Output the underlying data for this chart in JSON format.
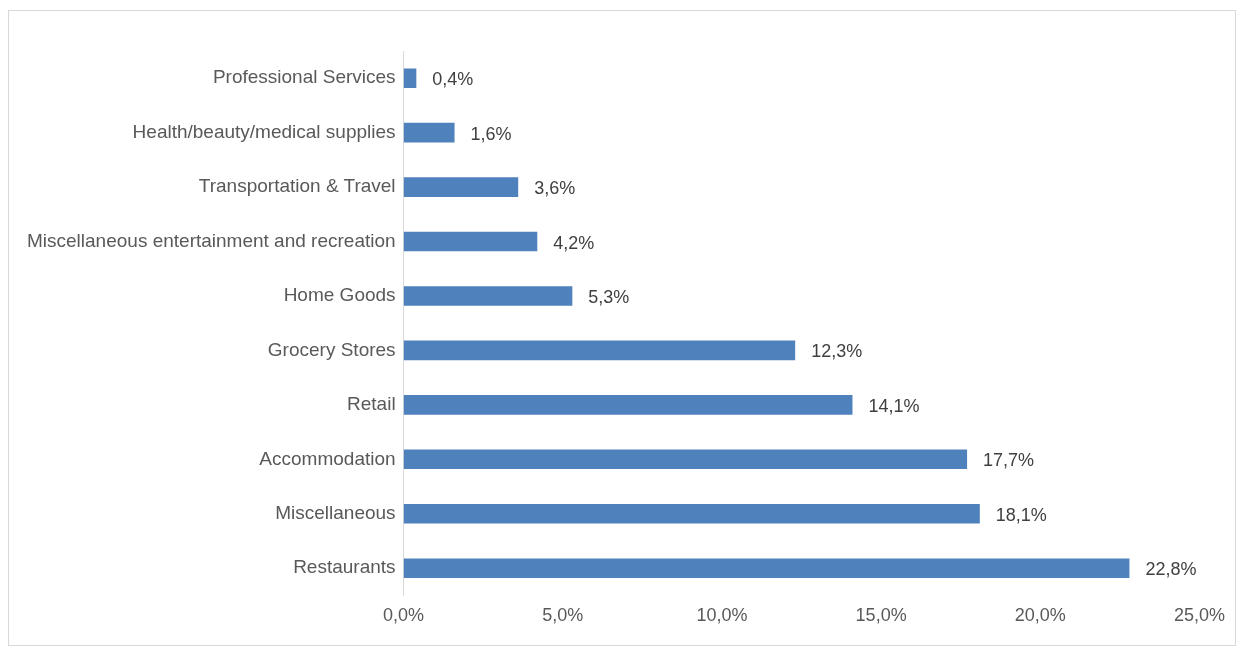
{
  "chart_data": {
    "type": "bar",
    "orientation": "horizontal",
    "categories": [
      "Professional Services",
      "Health/beauty/medical supplies",
      "Transportation & Travel",
      "Miscellaneous entertainment and recreation",
      "Home Goods",
      "Grocery Stores",
      "Retail",
      "Accommodation",
      "Miscellaneous",
      "Restaurants"
    ],
    "values": [
      0.4,
      1.6,
      3.6,
      4.2,
      5.3,
      12.3,
      14.1,
      17.7,
      18.1,
      22.8
    ],
    "value_labels": [
      "0,4%",
      "1,6%",
      "3,6%",
      "4,2%",
      "5,3%",
      "12,3%",
      "14,1%",
      "17,7%",
      "18,1%",
      "22,8%"
    ],
    "color": "#4f81bd",
    "xlim": [
      0,
      25
    ],
    "xticks": [
      {
        "value": 0,
        "label": "0,0%"
      },
      {
        "value": 5,
        "label": "5,0%"
      },
      {
        "value": 10,
        "label": "10,0%"
      },
      {
        "value": 15,
        "label": "15,0%"
      },
      {
        "value": 20,
        "label": "20,0%"
      },
      {
        "value": 25,
        "label": "25,0%"
      }
    ]
  }
}
